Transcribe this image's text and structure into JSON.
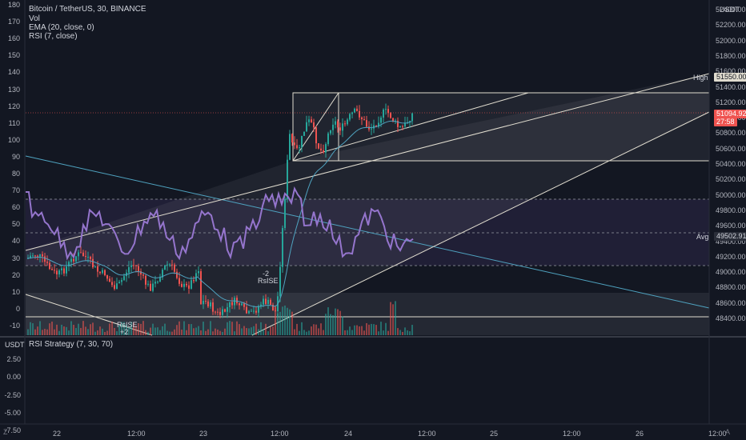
{
  "header": {
    "symbol_line": "Bitcoin / TetherUS, 30, BINANCE",
    "vol_label": "Vol",
    "ema_label": "EMA (20, close, 0)",
    "rsi_label": "RSI (7, close)",
    "currency_button": "USDT"
  },
  "left_axis": [
    "180",
    "170",
    "160",
    "150",
    "140",
    "130",
    "120",
    "110",
    "100",
    "90",
    "80",
    "70",
    "60",
    "50",
    "40",
    "30",
    "20",
    "10",
    "0",
    "-10"
  ],
  "right_axis": [
    "52400.00",
    "52200.00",
    "52000.00",
    "51800.00",
    "51600.00",
    "51400.00",
    "51200.00",
    "51000.00",
    "50800.00",
    "50600.00",
    "50400.00",
    "50200.00",
    "50000.00",
    "49800.00",
    "49600.00",
    "49400.00",
    "49200.00",
    "49000.00",
    "48800.00",
    "48600.00",
    "48400.00"
  ],
  "badges": {
    "high_label": "High",
    "high_value": "51550.00",
    "price_value": "51094.92",
    "price_timer": "27:58",
    "avg_label": "Avg",
    "avg_value": "49502.91"
  },
  "markers": {
    "marker_top_1": "-2",
    "marker_top_2": "RsISE",
    "marker_bottom_1": "RsISE",
    "marker_bottom_2": "+2"
  },
  "lower_pane": {
    "currency_button": "USDT",
    "title": "RSI Strategy (7, 30, 70)",
    "axis": [
      "2.50",
      "0.00",
      "-2.50",
      "-5.00",
      "-7.50"
    ]
  },
  "time_axis": [
    "22",
    "12:00",
    "23",
    "12:00",
    "24",
    "12:00",
    "25",
    "12:00",
    "26",
    "12:00"
  ],
  "corner": {
    "left": "Z",
    "right": "A"
  },
  "colors": {
    "up": "#26a69a",
    "down": "#ef5350",
    "rsi": "#9575cd",
    "ema": "#4fa3c0",
    "background": "#131722"
  },
  "chart_data": {
    "type": "candlestick",
    "symbol": "Bitcoin / TetherUS",
    "interval": "30",
    "exchange": "BINANCE",
    "price_range": [
      48300,
      52500
    ],
    "rsi_levels": [
      30,
      50,
      70
    ],
    "high": 51550.0,
    "last": 51094.92,
    "avg": 49502.91
  }
}
